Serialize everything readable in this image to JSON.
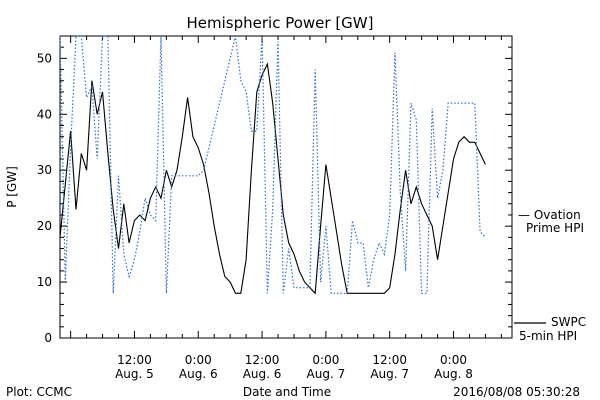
{
  "chart_data": {
    "type": "line",
    "title": "Hemispheric Power [GW]",
    "ylabel": "P [GW]",
    "xlabel": "Date and Time",
    "ylim": [
      0,
      54
    ],
    "xlim": [
      "2016-08-04T22:00",
      "2016-08-08T11:00"
    ],
    "y_ticks": [
      0,
      10,
      20,
      30,
      40,
      50
    ],
    "x_ticks": [
      {
        "time": "2016-08-05T12:00",
        "label": [
          "12:00",
          "Aug. 5"
        ]
      },
      {
        "time": "2016-08-06T00:00",
        "label": [
          "0:00",
          "Aug. 6"
        ]
      },
      {
        "time": "2016-08-06T12:00",
        "label": [
          "12:00",
          "Aug. 6"
        ]
      },
      {
        "time": "2016-08-07T00:00",
        "label": [
          "0:00",
          "Aug. 7"
        ]
      },
      {
        "time": "2016-08-07T12:00",
        "label": [
          "12:00",
          "Aug. 7"
        ]
      },
      {
        "time": "2016-08-08T00:00",
        "label": [
          "0:00",
          "Aug. 8"
        ]
      }
    ],
    "series": [
      {
        "name": "SWPC 5-min HPI",
        "color": "#000000",
        "style": "solid",
        "points": [
          [
            "2016-08-04T22:00",
            18
          ],
          [
            "2016-08-05T00:00",
            37
          ],
          [
            "2016-08-05T01:00",
            23
          ],
          [
            "2016-08-05T02:00",
            33
          ],
          [
            "2016-08-05T03:00",
            30
          ],
          [
            "2016-08-05T04:00",
            46
          ],
          [
            "2016-08-05T05:00",
            40
          ],
          [
            "2016-08-05T06:00",
            44
          ],
          [
            "2016-08-05T07:00",
            33
          ],
          [
            "2016-08-05T08:00",
            23
          ],
          [
            "2016-08-05T09:00",
            16
          ],
          [
            "2016-08-05T10:00",
            24
          ],
          [
            "2016-08-05T11:00",
            17
          ],
          [
            "2016-08-05T12:00",
            21
          ],
          [
            "2016-08-05T13:00",
            22
          ],
          [
            "2016-08-05T14:00",
            21
          ],
          [
            "2016-08-05T15:00",
            25
          ],
          [
            "2016-08-05T16:00",
            27
          ],
          [
            "2016-08-05T17:00",
            25
          ],
          [
            "2016-08-05T18:00",
            30
          ],
          [
            "2016-08-05T19:00",
            27
          ],
          [
            "2016-08-05T20:00",
            30
          ],
          [
            "2016-08-05T21:00",
            36
          ],
          [
            "2016-08-05T22:00",
            43
          ],
          [
            "2016-08-05T23:00",
            36
          ],
          [
            "2016-08-06T00:00",
            34
          ],
          [
            "2016-08-06T01:00",
            31
          ],
          [
            "2016-08-06T02:00",
            26
          ],
          [
            "2016-08-06T03:00",
            20
          ],
          [
            "2016-08-06T04:00",
            15
          ],
          [
            "2016-08-06T05:00",
            11
          ],
          [
            "2016-08-06T06:00",
            10
          ],
          [
            "2016-08-06T07:00",
            8
          ],
          [
            "2016-08-06T08:00",
            8
          ],
          [
            "2016-08-06T09:00",
            14
          ],
          [
            "2016-08-06T10:00",
            30
          ],
          [
            "2016-08-06T11:00",
            44
          ],
          [
            "2016-08-06T12:00",
            47
          ],
          [
            "2016-08-06T13:00",
            49
          ],
          [
            "2016-08-06T14:00",
            42
          ],
          [
            "2016-08-06T15:00",
            32
          ],
          [
            "2016-08-06T16:00",
            22
          ],
          [
            "2016-08-06T17:00",
            17
          ],
          [
            "2016-08-06T18:00",
            15
          ],
          [
            "2016-08-06T19:00",
            12
          ],
          [
            "2016-08-06T20:00",
            10
          ],
          [
            "2016-08-06T21:00",
            9
          ],
          [
            "2016-08-06T22:00",
            8
          ],
          [
            "2016-08-06T23:00",
            20
          ],
          [
            "2016-08-07T00:00",
            31
          ],
          [
            "2016-08-07T01:00",
            25
          ],
          [
            "2016-08-07T02:00",
            19
          ],
          [
            "2016-08-07T03:00",
            13
          ],
          [
            "2016-08-07T04:00",
            8
          ],
          [
            "2016-08-07T05:00",
            8
          ],
          [
            "2016-08-07T06:00",
            8
          ],
          [
            "2016-08-07T07:00",
            8
          ],
          [
            "2016-08-07T08:00",
            8
          ],
          [
            "2016-08-07T09:00",
            8
          ],
          [
            "2016-08-07T10:00",
            8
          ],
          [
            "2016-08-07T11:00",
            8
          ],
          [
            "2016-08-07T12:00",
            9
          ],
          [
            "2016-08-07T13:00",
            15
          ],
          [
            "2016-08-07T14:00",
            23
          ],
          [
            "2016-08-07T15:00",
            30
          ],
          [
            "2016-08-07T16:00",
            24
          ],
          [
            "2016-08-07T17:00",
            27
          ],
          [
            "2016-08-07T18:00",
            24
          ],
          [
            "2016-08-07T19:00",
            22
          ],
          [
            "2016-08-07T20:00",
            20
          ],
          [
            "2016-08-07T21:00",
            14
          ],
          [
            "2016-08-07T22:00",
            20
          ],
          [
            "2016-08-07T23:00",
            26
          ],
          [
            "2016-08-08T00:00",
            32
          ],
          [
            "2016-08-08T01:00",
            35
          ],
          [
            "2016-08-08T02:00",
            36
          ],
          [
            "2016-08-08T03:00",
            35
          ],
          [
            "2016-08-08T04:00",
            35
          ],
          [
            "2016-08-08T05:00",
            33
          ],
          [
            "2016-08-08T06:00",
            31
          ]
        ]
      },
      {
        "name": "Ovation Prime HPI",
        "color": "#2f6fd0",
        "style": "dotted",
        "points": [
          [
            "2016-08-04T22:00",
            54
          ],
          [
            "2016-08-04T23:00",
            10
          ],
          [
            "2016-08-05T00:00",
            34
          ],
          [
            "2016-08-05T01:00",
            54
          ],
          [
            "2016-08-05T02:00",
            54
          ],
          [
            "2016-08-05T03:00",
            43
          ],
          [
            "2016-08-05T04:00",
            45
          ],
          [
            "2016-08-05T05:00",
            32
          ],
          [
            "2016-08-05T06:00",
            54
          ],
          [
            "2016-08-05T07:00",
            54
          ],
          [
            "2016-08-05T08:00",
            8
          ],
          [
            "2016-08-05T09:00",
            29
          ],
          [
            "2016-08-05T10:00",
            15
          ],
          [
            "2016-08-05T11:00",
            11
          ],
          [
            "2016-08-05T12:00",
            14
          ],
          [
            "2016-08-05T13:00",
            19
          ],
          [
            "2016-08-05T14:00",
            25
          ],
          [
            "2016-08-05T15:00",
            22
          ],
          [
            "2016-08-05T16:00",
            21
          ],
          [
            "2016-08-05T17:00",
            54
          ],
          [
            "2016-08-05T18:00",
            8
          ],
          [
            "2016-08-05T19:00",
            29
          ],
          [
            "2016-08-05T20:00",
            29
          ],
          [
            "2016-08-05T21:00",
            29
          ],
          [
            "2016-08-05T22:00",
            29
          ],
          [
            "2016-08-05T23:00",
            29
          ],
          [
            "2016-08-06T00:00",
            29
          ],
          [
            "2016-08-06T01:00",
            30
          ],
          [
            "2016-08-06T07:00",
            54
          ],
          [
            "2016-08-06T08:00",
            46
          ],
          [
            "2016-08-06T09:00",
            44
          ],
          [
            "2016-08-06T10:00",
            37
          ],
          [
            "2016-08-06T11:00",
            37
          ],
          [
            "2016-08-06T12:00",
            54
          ],
          [
            "2016-08-06T13:00",
            8
          ],
          [
            "2016-08-06T14:00",
            23
          ],
          [
            "2016-08-06T15:00",
            53
          ],
          [
            "2016-08-06T16:00",
            8
          ],
          [
            "2016-08-06T17:00",
            16
          ],
          [
            "2016-08-06T18:00",
            9
          ],
          [
            "2016-08-06T19:00",
            9
          ],
          [
            "2016-08-06T20:00",
            9
          ],
          [
            "2016-08-06T21:00",
            9
          ],
          [
            "2016-08-06T22:00",
            48
          ],
          [
            "2016-08-06T23:00",
            10
          ],
          [
            "2016-08-07T00:00",
            20
          ],
          [
            "2016-08-07T01:00",
            8
          ],
          [
            "2016-08-07T02:00",
            8
          ],
          [
            "2016-08-07T03:00",
            8
          ],
          [
            "2016-08-07T04:00",
            8
          ],
          [
            "2016-08-07T05:00",
            21
          ],
          [
            "2016-08-07T06:00",
            17
          ],
          [
            "2016-08-07T07:00",
            17
          ],
          [
            "2016-08-07T08:00",
            9
          ],
          [
            "2016-08-07T09:00",
            14
          ],
          [
            "2016-08-07T10:00",
            17
          ],
          [
            "2016-08-07T11:00",
            15
          ],
          [
            "2016-08-07T12:00",
            22
          ],
          [
            "2016-08-07T13:00",
            51
          ],
          [
            "2016-08-07T14:00",
            26
          ],
          [
            "2016-08-07T15:00",
            12
          ],
          [
            "2016-08-07T16:00",
            42
          ],
          [
            "2016-08-07T17:00",
            39
          ],
          [
            "2016-08-07T18:00",
            8
          ],
          [
            "2016-08-07T19:00",
            8
          ],
          [
            "2016-08-07T20:00",
            41
          ],
          [
            "2016-08-07T21:00",
            25
          ],
          [
            "2016-08-07T22:00",
            30
          ],
          [
            "2016-08-07T23:00",
            42
          ],
          [
            "2016-08-08T00:00",
            42
          ],
          [
            "2016-08-08T01:00",
            42
          ],
          [
            "2016-08-08T02:00",
            42
          ],
          [
            "2016-08-08T03:00",
            42
          ],
          [
            "2016-08-08T04:00",
            42
          ],
          [
            "2016-08-08T05:00",
            19
          ],
          [
            "2016-08-08T06:00",
            18
          ]
        ]
      }
    ],
    "legend": [
      {
        "text": "— Ovation",
        "text2": "Prime HPI",
        "color": "#2f6fd0"
      },
      {
        "text": "SWPC",
        "text2": "5-min HPI",
        "color": "#000000"
      }
    ],
    "legend_position": "right",
    "grid": false,
    "footer": {
      "left": "Plot: CCMC",
      "center": "Date and Time",
      "right": "2016/08/08 05:30:28"
    }
  }
}
